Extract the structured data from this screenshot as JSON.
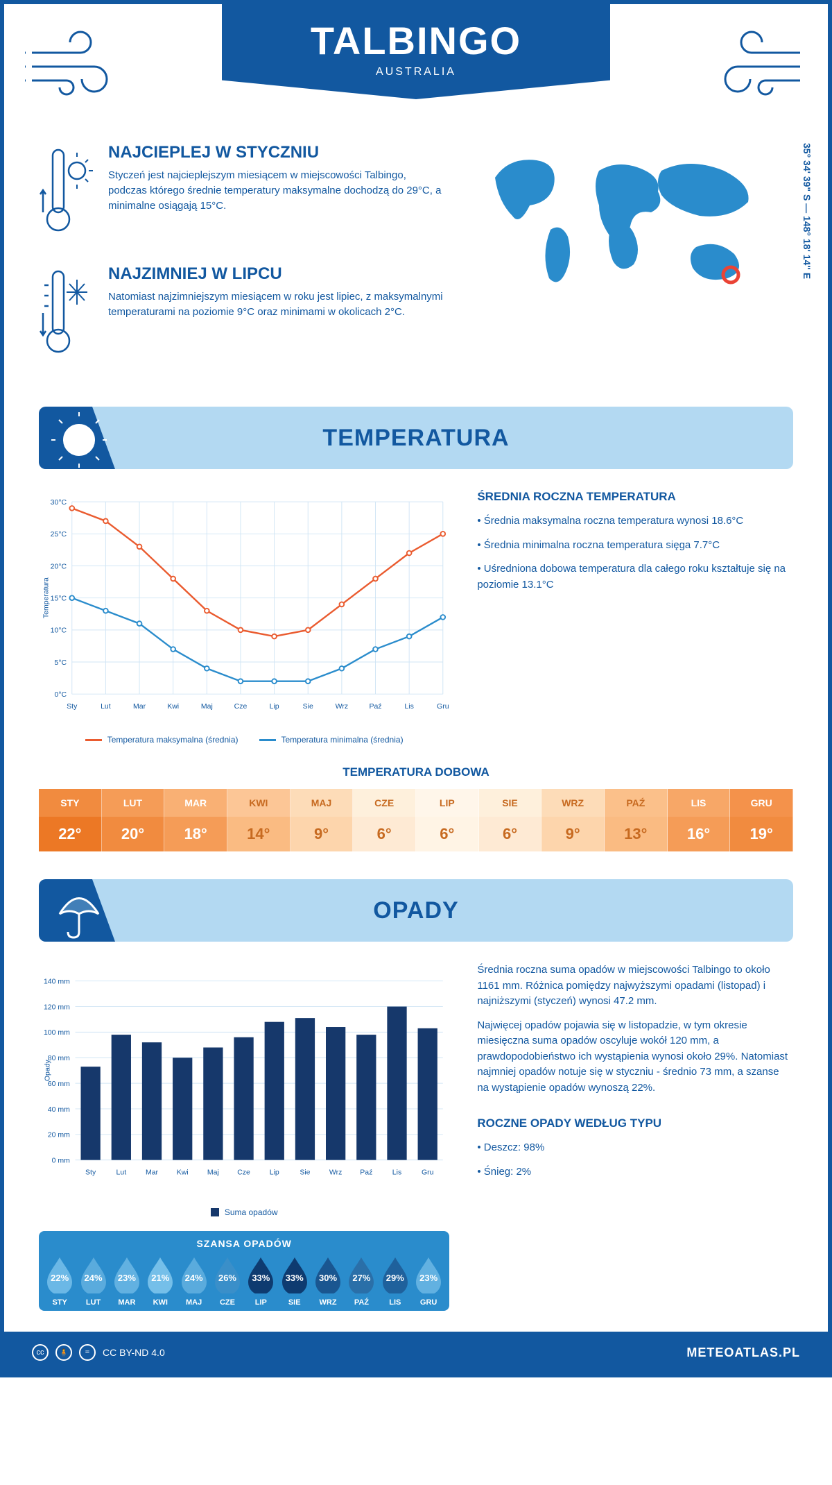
{
  "header": {
    "title": "TALBINGO",
    "subtitle": "AUSTRALIA"
  },
  "coords": "35° 34' 39\" S — 148° 18' 14\" E",
  "brand_color": "#1258a0",
  "hot": {
    "title": "NAJCIEPLEJ W STYCZNIU",
    "text": "Styczeń jest najcieplejszym miesiącem w miejscowości Talbingo, podczas którego średnie temperatury maksymalne dochodzą do 29°C, a minimalne osiągają 15°C."
  },
  "cold": {
    "title": "NAJZIMNIEJ W LIPCU",
    "text": "Natomiast najzimniejszym miesiącem w roku jest lipiec, z maksymalnymi temperaturami na poziomie 9°C oraz minimami w okolicach 2°C."
  },
  "temp_section": {
    "heading": "TEMPERATURA",
    "stats_heading": "ŚREDNIA ROCZNA TEMPERATURA",
    "stat1": "Średnia maksymalna roczna temperatura wynosi 18.6°C",
    "stat2": "Średnia minimalna roczna temperatura sięga 7.7°C",
    "stat3": "Uśredniona dobowa temperatura dla całego roku kształtuje się na poziomie 13.1°C"
  },
  "temp_chart": {
    "type": "line",
    "months": [
      "Sty",
      "Lut",
      "Mar",
      "Kwi",
      "Maj",
      "Cze",
      "Lip",
      "Sie",
      "Wrz",
      "Paź",
      "Lis",
      "Gru"
    ],
    "ylabel": "Temperatura",
    "ylim": [
      0,
      30
    ],
    "ytick_step": 5,
    "grid_color": "#d0e5f5",
    "background_color": "#ffffff",
    "label_fontsize": 11,
    "series": [
      {
        "name": "Temperatura maksymalna (średnia)",
        "color": "#ea5b2f",
        "values": [
          29,
          27,
          23,
          18,
          13,
          10,
          9,
          10,
          14,
          18,
          22,
          25
        ]
      },
      {
        "name": "Temperatura minimalna (średnia)",
        "color": "#2a8ccc",
        "values": [
          15,
          13,
          11,
          7,
          4,
          2,
          2,
          2,
          4,
          7,
          9,
          12
        ]
      }
    ]
  },
  "daily_temp": {
    "heading": "TEMPERATURA DOBOWA",
    "months": [
      "STY",
      "LUT",
      "MAR",
      "KWI",
      "MAJ",
      "CZE",
      "LIP",
      "SIE",
      "WRZ",
      "PAŹ",
      "LIS",
      "GRU"
    ],
    "values": [
      "22°",
      "20°",
      "18°",
      "14°",
      "9°",
      "6°",
      "6°",
      "6°",
      "9°",
      "13°",
      "16°",
      "19°"
    ],
    "head_colors": [
      "#f18b3f",
      "#f59c57",
      "#f9b074",
      "#fcc696",
      "#fddcb8",
      "#fef0dc",
      "#fff6ea",
      "#fef0dc",
      "#fddcb8",
      "#fbc08a",
      "#f7a767",
      "#f4924b"
    ],
    "val_colors": [
      "#ec7825",
      "#f18b3f",
      "#f59c57",
      "#fabb82",
      "#fdd5ac",
      "#feead4",
      "#fff4e5",
      "#feead4",
      "#fdd5ac",
      "#fabb82",
      "#f59c57",
      "#f18b3f"
    ],
    "text_colors": [
      "#ffffff",
      "#ffffff",
      "#ffffff",
      "#c76a20",
      "#c76a20",
      "#c76a20",
      "#c76a20",
      "#c76a20",
      "#c76a20",
      "#c76a20",
      "#ffffff",
      "#ffffff"
    ]
  },
  "rain_section": {
    "heading": "OPADY",
    "para1": "Średnia roczna suma opadów w miejscowości Talbingo to około 1161 mm. Różnica pomiędzy najwyższymi opadami (listopad) i najniższymi (styczeń) wynosi 47.2 mm.",
    "para2": "Najwięcej opadów pojawia się w listopadzie, w tym okresie miesięczna suma opadów oscyluje wokół 120 mm, a prawdopodobieństwo ich wystąpienia wynosi około 29%. Natomiast najmniej opadów notuje się w styczniu - średnio 73 mm, a szanse na wystąpienie opadów wynoszą 22%.",
    "type_heading": "ROCZNE OPADY WEDŁUG TYPU",
    "type1": "Deszcz: 98%",
    "type2": "Śnieg: 2%"
  },
  "rain_chart": {
    "type": "bar",
    "months": [
      "Sty",
      "Lut",
      "Mar",
      "Kwi",
      "Maj",
      "Cze",
      "Lip",
      "Sie",
      "Wrz",
      "Paź",
      "Lis",
      "Gru"
    ],
    "ylabel": "Opady",
    "legend": "Suma opadów",
    "ylim": [
      0,
      140
    ],
    "ytick_step": 20,
    "bar_color": "#16386b",
    "grid_color": "#d0e5f5",
    "values": [
      73,
      98,
      92,
      80,
      88,
      96,
      108,
      111,
      104,
      98,
      120,
      103
    ]
  },
  "rain_chance": {
    "heading": "SZANSA OPADÓW",
    "months": [
      "STY",
      "LUT",
      "MAR",
      "KWI",
      "MAJ",
      "CZE",
      "LIP",
      "SIE",
      "WRZ",
      "PAŹ",
      "LIS",
      "GRU"
    ],
    "pct": [
      "22%",
      "24%",
      "23%",
      "21%",
      "24%",
      "26%",
      "33%",
      "33%",
      "30%",
      "27%",
      "29%",
      "23%"
    ],
    "drop_colors": [
      "#6bb8e6",
      "#5aabdd",
      "#62b1e1",
      "#75bfe9",
      "#5aabdd",
      "#3a8fc9",
      "#0e3b70",
      "#0e3b70",
      "#1a5690",
      "#2a6fa8",
      "#1f619c",
      "#62b1e1"
    ]
  },
  "footer": {
    "license": "CC BY-ND 4.0",
    "brand": "METEOATLAS.PL"
  }
}
